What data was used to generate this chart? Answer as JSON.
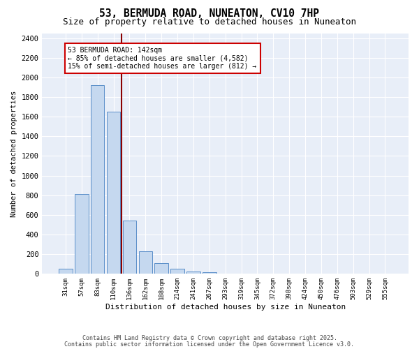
{
  "title": "53, BERMUDA ROAD, NUNEATON, CV10 7HP",
  "subtitle": "Size of property relative to detached houses in Nuneaton",
  "xlabel": "Distribution of detached houses by size in Nuneaton",
  "ylabel": "Number of detached properties",
  "bin_labels": [
    "31sqm",
    "57sqm",
    "83sqm",
    "110sqm",
    "136sqm",
    "162sqm",
    "188sqm",
    "214sqm",
    "241sqm",
    "267sqm",
    "293sqm",
    "319sqm",
    "345sqm",
    "372sqm",
    "398sqm",
    "424sqm",
    "450sqm",
    "476sqm",
    "503sqm",
    "529sqm",
    "555sqm"
  ],
  "bar_heights": [
    50,
    810,
    1920,
    1650,
    540,
    230,
    110,
    50,
    25,
    15,
    5,
    0,
    0,
    0,
    0,
    0,
    0,
    0,
    0,
    0,
    0
  ],
  "bar_color": "#c5d8ef",
  "bar_edge_color": "#5b8fc9",
  "vline_x": 3.5,
  "vline_color": "#8b0000",
  "annotation_text": "53 BERMUDA ROAD: 142sqm\n← 85% of detached houses are smaller (4,582)\n15% of semi-detached houses are larger (812) →",
  "annotation_box_color": "white",
  "annotation_box_edge_color": "#cc0000",
  "ylim": [
    0,
    2450
  ],
  "yticks": [
    0,
    200,
    400,
    600,
    800,
    1000,
    1200,
    1400,
    1600,
    1800,
    2000,
    2200,
    2400
  ],
  "bg_color": "#e8eef8",
  "footer_line1": "Contains HM Land Registry data © Crown copyright and database right 2025.",
  "footer_line2": "Contains public sector information licensed under the Open Government Licence v3.0.",
  "title_fontsize": 10.5,
  "subtitle_fontsize": 9
}
